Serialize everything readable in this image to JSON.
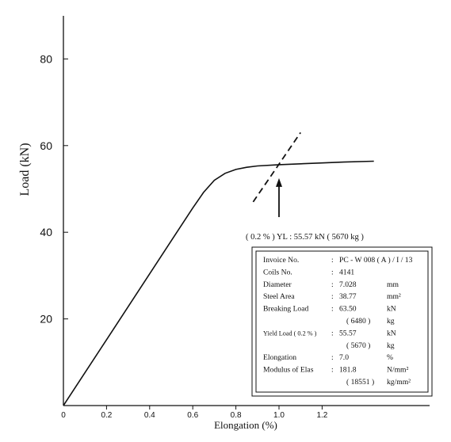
{
  "chart_data": {
    "type": "line",
    "title": "",
    "xlabel": "Elongation  (%)",
    "ylabel": "Load  (kN)",
    "xlim": [
      0,
      1.7
    ],
    "ylim": [
      0,
      90
    ],
    "x_ticks": [
      0,
      0.2,
      0.4,
      0.6,
      0.8,
      1.0,
      1.2
    ],
    "x_tick_labels": [
      "0",
      "0.2",
      "0.4",
      "0.6",
      "0.8",
      "1.0",
      "1.2"
    ],
    "y_ticks": [
      20,
      40,
      60,
      80
    ],
    "y_tick_labels": [
      "20",
      "40",
      "60",
      "80"
    ],
    "grid": false,
    "series": [
      {
        "x": [
          0,
          0.1,
          0.2,
          0.3,
          0.4,
          0.5,
          0.6,
          0.65,
          0.7,
          0.75,
          0.8,
          0.85,
          0.9,
          1.0,
          1.1,
          1.2,
          1.3,
          1.44
        ],
        "y": [
          0,
          7.6,
          15.2,
          22.8,
          30.4,
          38.0,
          45.6,
          49.2,
          52.0,
          53.6,
          54.5,
          55.0,
          55.3,
          55.6,
          55.8,
          56.0,
          56.2,
          56.4
        ]
      },
      {
        "style": "dashed",
        "x": [
          0.88,
          1.1
        ],
        "y": [
          47.0,
          63.0
        ]
      }
    ],
    "annotations": {
      "yield_label": "( 0.2 % )  YL  :  55.57  kN  ( 5670  kg )",
      "arrow_tip": {
        "x": 1.0,
        "y": 52.5
      },
      "arrow_tail": {
        "x": 1.0,
        "y": 43.5
      }
    }
  },
  "info_box": {
    "rows": [
      {
        "label": "Invoice No.",
        "sep": ":",
        "value": "PC - W 008 ( A ) / I / 13",
        "unit": ""
      },
      {
        "label": "Coils    No.",
        "sep": ":",
        "value": "4141",
        "unit": ""
      },
      {
        "label": "Diameter",
        "sep": ":",
        "value": "7.028",
        "unit": "mm"
      },
      {
        "label": "Steel   Area",
        "sep": ":",
        "value": "38.77",
        "unit": "mm²"
      },
      {
        "label": "Breaking Load",
        "sep": ":",
        "value": "63.50",
        "unit": "kN"
      },
      {
        "label": "",
        "sep": "",
        "value": "( 6480 )",
        "unit": "kg"
      },
      {
        "label": "Yield Load ( 0.2 % )",
        "sep": ":",
        "value": "55.57",
        "unit": "kN"
      },
      {
        "label": "",
        "sep": "",
        "value": "( 5670 )",
        "unit": "kg"
      },
      {
        "label": "Elongation",
        "sep": ":",
        "value": "7.0",
        "unit": "%"
      },
      {
        "label": "Modulus of Elas",
        "sep": ":",
        "value": "181.8",
        "unit": "N/mm²"
      },
      {
        "label": "",
        "sep": "",
        "value": "( 18551 )",
        "unit": "kg/mm²"
      }
    ]
  }
}
